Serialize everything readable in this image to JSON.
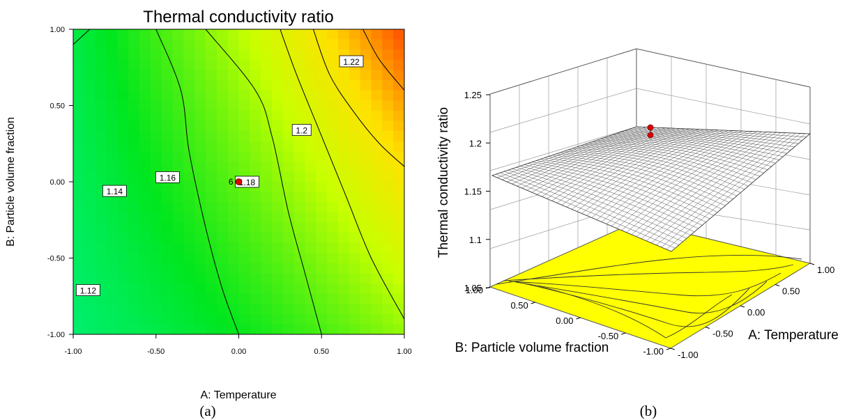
{
  "chart_data": [
    {
      "type": "contour",
      "title": "Thermal conductivity ratio",
      "xlabel": "A: Temperature",
      "ylabel": "B: Particle volume fraction",
      "xlim": [
        -1.0,
        1.0
      ],
      "ylim": [
        -1.0,
        1.0
      ],
      "x_ticks": [
        "-1.00",
        "-0.50",
        "0.00",
        "0.50",
        "1.00"
      ],
      "y_ticks": [
        "-1.00",
        "-0.50",
        "0.00",
        "0.50",
        "1.00"
      ],
      "z_range": [
        1.105,
        1.245
      ],
      "contours": [
        {
          "level": 1.12,
          "label": "1.12",
          "points": [
            [
              -0.9,
              1.0
            ],
            [
              -1.0,
              0.9
            ]
          ]
        },
        {
          "level": 1.14,
          "label": "1.14",
          "points": [
            [
              -0.5,
              1.0
            ],
            [
              -0.35,
              0.6
            ],
            [
              -0.3,
              0.2
            ],
            [
              -0.2,
              -0.3
            ],
            [
              -0.1,
              -0.7
            ],
            [
              0.0,
              -1.0
            ]
          ]
        },
        {
          "level": 1.16,
          "label": "1.16",
          "points": [
            [
              -0.2,
              1.0
            ],
            [
              0.1,
              0.6
            ],
            [
              0.2,
              0.3
            ],
            [
              0.3,
              -0.2
            ],
            [
              0.4,
              -0.6
            ],
            [
              0.5,
              -1.0
            ]
          ]
        },
        {
          "level": 1.18,
          "label": "1.18",
          "points": [
            [
              0.25,
              1.0
            ],
            [
              0.35,
              0.7
            ],
            [
              0.5,
              0.3
            ],
            [
              0.65,
              -0.1
            ],
            [
              0.8,
              -0.5
            ],
            [
              1.0,
              -0.9
            ]
          ]
        },
        {
          "level": 1.2,
          "label": "1.2",
          "points": [
            [
              0.45,
              1.0
            ],
            [
              0.55,
              0.7
            ],
            [
              0.7,
              0.45
            ],
            [
              0.85,
              0.25
            ],
            [
              1.0,
              0.1
            ]
          ]
        },
        {
          "level": 1.22,
          "label": "1.22",
          "points": [
            [
              0.75,
              1.0
            ],
            [
              0.85,
              0.8
            ],
            [
              1.0,
              0.6
            ]
          ]
        }
      ],
      "design_point": {
        "x": 0.0,
        "y": 0.0,
        "label": "6"
      },
      "panel_label": "(a)"
    },
    {
      "type": "surface3d",
      "zlabel": "Thermal conductivity ratio",
      "xlabel": "A: Temperature",
      "ylabel": "B: Particle volume fraction",
      "z_ticks": [
        "1.05",
        "1.1",
        "1.15",
        "1.2",
        "1.25"
      ],
      "zlim": [
        1.05,
        1.25
      ],
      "x_ticks": [
        "-1.00",
        "-0.50",
        "0.00",
        "0.50",
        "1.00"
      ],
      "y_ticks": [
        "-1.00",
        "-0.50",
        "0.00",
        "0.50",
        "1.00"
      ],
      "design_points": [
        {
          "x": 0.0,
          "y": 0.0,
          "z": 1.2
        },
        {
          "x": 0.0,
          "y": 0.0,
          "z": 1.19
        }
      ],
      "panel_label": "(b)"
    }
  ]
}
